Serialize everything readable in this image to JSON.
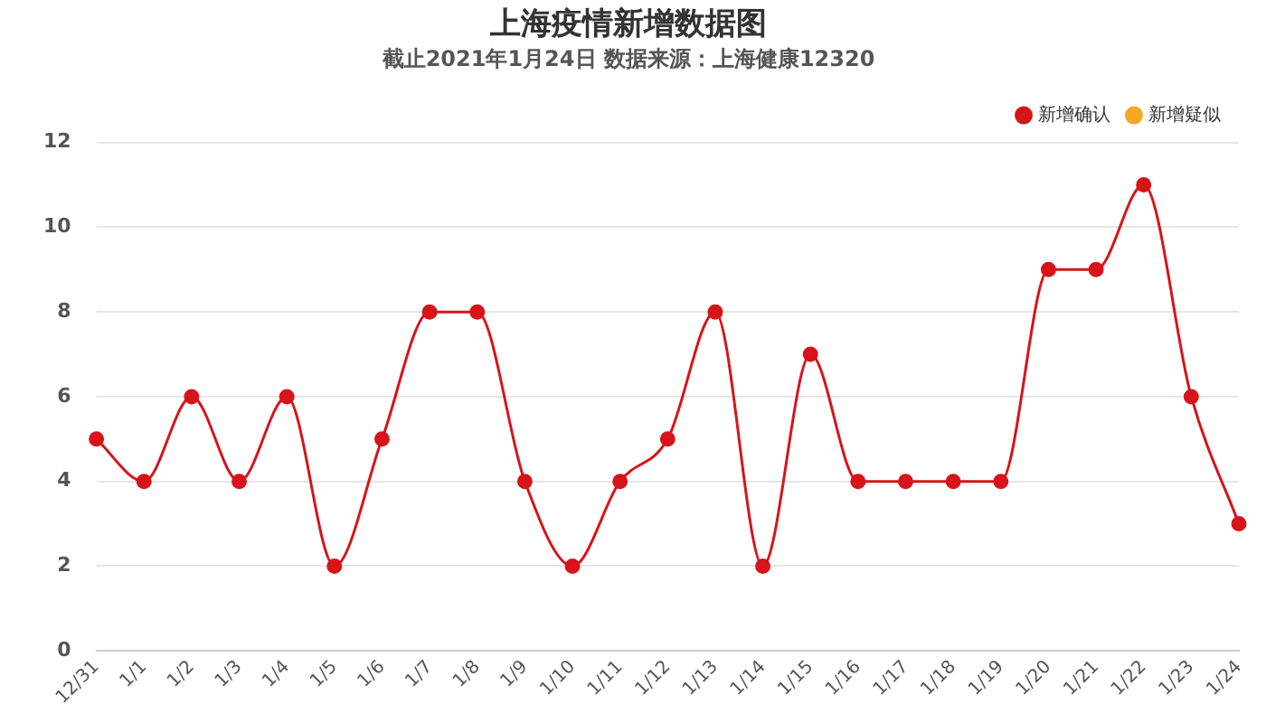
{
  "chart_data": {
    "type": "line",
    "title": "上海疫情新增数据图",
    "subtitle": "截止2021年1月24日 数据来源：上海健康12320",
    "categories": [
      "12/31",
      "1/1",
      "1/2",
      "1/3",
      "1/4",
      "1/5",
      "1/6",
      "1/7",
      "1/8",
      "1/9",
      "1/10",
      "1/11",
      "1/12",
      "1/13",
      "1/14",
      "1/15",
      "1/16",
      "1/17",
      "1/18",
      "1/19",
      "1/20",
      "1/21",
      "1/22",
      "1/23",
      "1/24"
    ],
    "series": [
      {
        "name": "新增确认",
        "color": "#d7141a",
        "values": [
          5,
          4,
          6,
          4,
          6,
          2,
          5,
          8,
          8,
          4,
          2,
          4,
          5,
          8,
          2,
          7,
          4,
          4,
          4,
          4,
          9,
          9,
          11,
          6,
          3
        ]
      },
      {
        "name": "新增疑似",
        "color": "#f5a623",
        "values": [
          null,
          null,
          null,
          null,
          null,
          null,
          null,
          null,
          null,
          null,
          null,
          null,
          null,
          null,
          null,
          null,
          null,
          null,
          null,
          null,
          null,
          null,
          null,
          null,
          null
        ]
      }
    ],
    "ylim": [
      0,
      12
    ],
    "yticks": [
      0,
      2,
      4,
      6,
      8,
      10,
      12
    ],
    "grid": "y",
    "legend": "top right",
    "marker": "circle"
  }
}
